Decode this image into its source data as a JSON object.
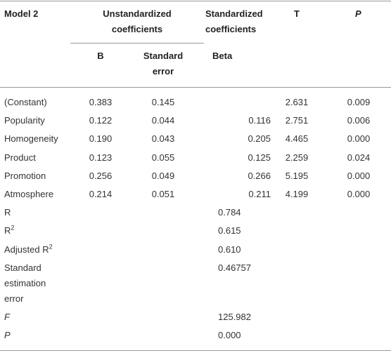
{
  "header": {
    "model": "Model 2",
    "unstandardized": "Unstandardized coefficients",
    "standardized": "Standardized coefficients",
    "t": "T",
    "p": "P",
    "b": "B",
    "standard_error": "Standard error",
    "beta": "Beta"
  },
  "coefficients": [
    {
      "label": "(Constant)",
      "b": "0.383",
      "se": "0.145",
      "t": "2.631",
      "p": "0.009"
    },
    {
      "label": "Popularity",
      "b": "0.122",
      "se": "0.044",
      "beta": "0.116",
      "t": "2.751",
      "p": "0.006"
    },
    {
      "label": "Homogeneity",
      "b": "0.190",
      "se": "0.043",
      "beta": "0.205",
      "t": "4.465",
      "p": "0.000"
    },
    {
      "label": "Product",
      "b": "0.123",
      "se": "0.055",
      "beta": "0.125",
      "t": "2.259",
      "p": "0.024"
    },
    {
      "label": "Promotion",
      "b": "0.256",
      "se": "0.049",
      "beta": "0.266",
      "t": "5.195",
      "p": "0.000"
    },
    {
      "label": "Atmosphere",
      "b": "0.214",
      "se": "0.051",
      "beta": "0.211",
      "t": "4.199",
      "p": "0.000"
    }
  ],
  "statistics": [
    {
      "label": "R",
      "value": "0.784"
    },
    {
      "label": "R",
      "sup": "2",
      "value": "0.615"
    },
    {
      "label": "Adjusted R",
      "sup": "2",
      "value": "0.610"
    },
    {
      "label": "Standard estimation error",
      "value": "0.46757"
    },
    {
      "label": "F",
      "value": "125.982",
      "italic": true
    },
    {
      "label": "P",
      "value": "0.000",
      "italic": true
    }
  ]
}
